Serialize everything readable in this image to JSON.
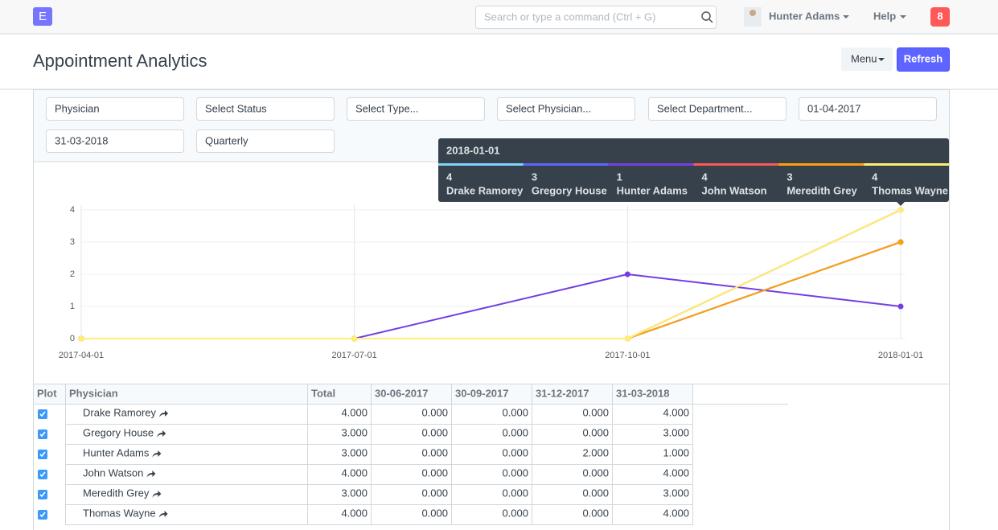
{
  "navbar": {
    "logo": "E",
    "search_placeholder": "Search or type a command (Ctrl + G)",
    "user": "Hunter Adams",
    "help": "Help",
    "notifications": "8"
  },
  "header": {
    "title": "Appointment Analytics",
    "menu_button": "Menu",
    "refresh_button": "Refresh"
  },
  "filters": [
    "Physician",
    "Select Status",
    "Select Type...",
    "Select Physician...",
    "Select Department...",
    "01-04-2017",
    "31-03-2018",
    "Quarterly"
  ],
  "chart_data": {
    "type": "line",
    "categories": [
      "2017-04-01",
      "2017-07-01",
      "2017-10-01",
      "2018-01-01"
    ],
    "series": [
      {
        "name": "Drake Ramorey",
        "color": "#7cd6fd",
        "values": [
          0,
          0,
          0,
          4
        ]
      },
      {
        "name": "Gregory House",
        "color": "#5e64ff",
        "values": [
          0,
          0,
          0,
          3
        ]
      },
      {
        "name": "Hunter Adams",
        "color": "#743ee2",
        "values": [
          0,
          0,
          2,
          1
        ]
      },
      {
        "name": "John Watson",
        "color": "#ff5858",
        "values": [
          0,
          0,
          0,
          4
        ]
      },
      {
        "name": "Meredith Grey",
        "color": "#ffa00a",
        "values": [
          0,
          0,
          0,
          3
        ]
      },
      {
        "name": "Thomas Wayne",
        "color": "#feef72",
        "values": [
          0,
          0,
          0,
          4
        ]
      }
    ],
    "ylim": [
      0,
      4
    ],
    "yticks": [
      0,
      1,
      2,
      3,
      4
    ],
    "grid": true,
    "tooltip_index": 3
  },
  "table": {
    "columns": [
      "Plot",
      "Physician",
      "Total",
      "30-06-2017",
      "30-09-2017",
      "31-12-2017",
      "31-03-2018"
    ],
    "rows": [
      [
        "Drake Ramorey",
        "4.000",
        "0.000",
        "0.000",
        "0.000",
        "4.000"
      ],
      [
        "Gregory House",
        "3.000",
        "0.000",
        "0.000",
        "0.000",
        "3.000"
      ],
      [
        "Hunter Adams",
        "3.000",
        "0.000",
        "0.000",
        "2.000",
        "1.000"
      ],
      [
        "John Watson",
        "4.000",
        "0.000",
        "0.000",
        "0.000",
        "4.000"
      ],
      [
        "Meredith Grey",
        "3.000",
        "0.000",
        "0.000",
        "0.000",
        "3.000"
      ],
      [
        "Thomas Wayne",
        "4.000",
        "0.000",
        "0.000",
        "0.000",
        "4.000"
      ]
    ]
  }
}
